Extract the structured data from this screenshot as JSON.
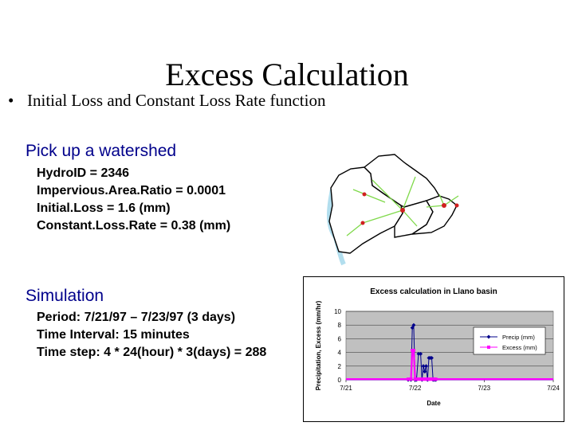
{
  "slide": {
    "title": "Excess Calculation",
    "bullet": "Initial Loss and Constant Loss Rate function",
    "bullet_symbol": "•"
  },
  "watershed": {
    "heading": "Pick up a watershed",
    "lines": [
      "HydroID = 2346",
      "Impervious.Area.Ratio = 0.0001",
      "Initial.Loss  = 1.6 (mm)",
      "Constant.Loss.Rate = 0.38 (mm)"
    ]
  },
  "simulation": {
    "heading": "Simulation",
    "lines": [
      "Period: 7/21/97 – 7/23/97 (3 days)",
      "Time Interval: 15 minutes",
      "Time step: 4 * 24(hour) * 3(days) = 288"
    ]
  },
  "colors": {
    "precip": "#00008b",
    "excess": "#ff00ff",
    "plot_bg": "#c0c0c0",
    "heading": "#00008b"
  },
  "chart_data": {
    "type": "line",
    "title": "Excess calculation in Llano basin",
    "xlabel": "Date",
    "ylabel": "Precipitation, Excess (mm/hr)",
    "x_tick_labels": [
      "7/21",
      "7/22",
      "7/23",
      "7/24"
    ],
    "x_range": [
      0,
      3
    ],
    "ylim": [
      0,
      10
    ],
    "y_ticks": [
      0,
      2,
      4,
      6,
      8,
      10
    ],
    "grid": "horizontal",
    "legend_position": "right",
    "series": [
      {
        "name": "Precip (mm)",
        "color": "#00008b",
        "marker": "diamond",
        "x": [
          0,
          0.9,
          0.94,
          0.96,
          0.98,
          1.0,
          1.02,
          1.05,
          1.08,
          1.1,
          1.12,
          1.14,
          1.16,
          1.18,
          1.2,
          1.22,
          1.24,
          1.26,
          1.28,
          1.3,
          3.0
        ],
        "y": [
          0,
          0,
          0,
          7.6,
          8.0,
          0,
          0,
          3.8,
          3.8,
          0,
          2.0,
          1.2,
          2.0,
          0,
          3.2,
          3.2,
          3.2,
          0,
          0,
          0,
          0
        ]
      },
      {
        "name": "Excess (mm)",
        "color": "#ff00ff",
        "marker": "square",
        "x": [
          0,
          0.9,
          0.94,
          0.96,
          0.98,
          1.0,
          1.02,
          1.05,
          1.08,
          1.1,
          1.12,
          1.14,
          1.16,
          1.18,
          1.2,
          1.22,
          1.24,
          1.26,
          1.28,
          1.3,
          3.0
        ],
        "y": [
          0.1,
          0.1,
          0.1,
          4.3,
          4.3,
          0.1,
          0.1,
          0.1,
          0.1,
          0.1,
          0.1,
          0.1,
          0.1,
          0.1,
          0.1,
          0.1,
          0.1,
          0.1,
          0.1,
          0.1,
          0.1
        ]
      }
    ]
  }
}
